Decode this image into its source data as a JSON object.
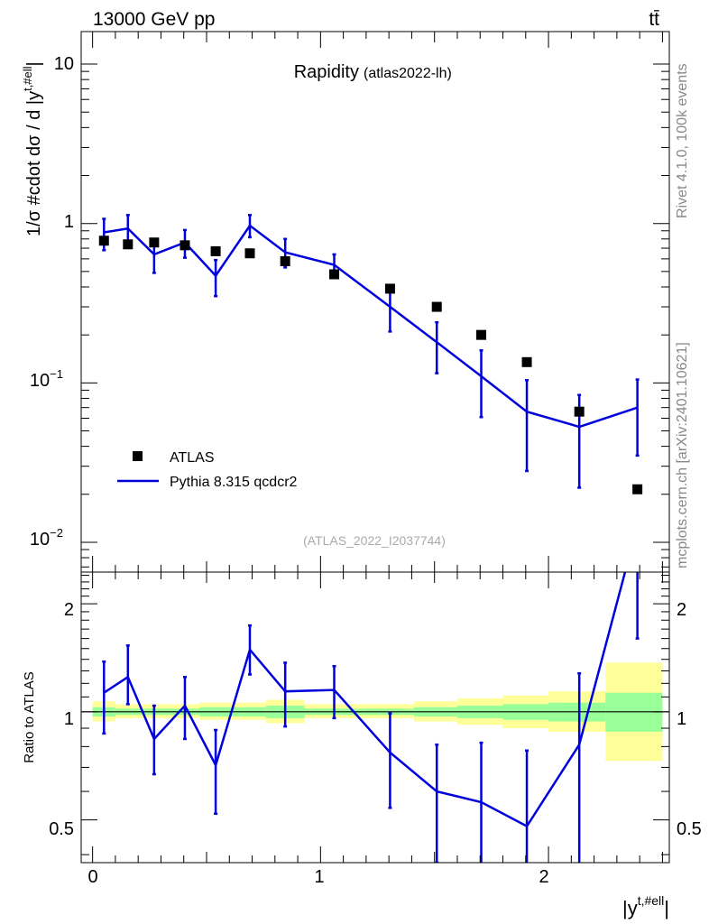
{
  "header": {
    "energy_label": "13000 GeV pp",
    "process_label": "tt̄"
  },
  "side_labels": {
    "rivet": "Rivet 4.1.0,  100k events",
    "mcplots": "mcplots.cern.ch [arXiv:2401.10621]"
  },
  "chart_data": [
    {
      "type": "scatter",
      "panel": "main",
      "title": "Rapidity",
      "subtitle": "(atlas2022-lh)",
      "watermark": "(ATLAS_2022_I2037744)",
      "xlabel": "|y^{t,#ell}|",
      "ylabel": "1/σ #cdot dσ / d |y^{t,#ell}|",
      "yscale": "log",
      "xlim": [
        -0.05,
        2.53
      ],
      "ylim": [
        0.0065,
        16
      ],
      "x_ticks": [
        "0",
        "1",
        "2"
      ],
      "y_ticks": [
        "10^{-2}",
        "10^{-1}",
        "1",
        "10"
      ],
      "legend": {
        "position": "bottom-left",
        "entries": [
          "ATLAS",
          "Pythia 8.315 qcdcr2"
        ]
      },
      "series": [
        {
          "name": "ATLAS",
          "style": "markers",
          "color": "#000000",
          "x": [
            0.05,
            0.155,
            0.27,
            0.405,
            0.54,
            0.69,
            0.845,
            1.06,
            1.305,
            1.51,
            1.705,
            1.905,
            2.135,
            2.39
          ],
          "values": [
            0.78,
            0.74,
            0.76,
            0.73,
            0.67,
            0.65,
            0.58,
            0.48,
            0.39,
            0.3,
            0.2,
            0.135,
            0.066,
            0.0215
          ]
        },
        {
          "name": "Pythia 8.315 qcdcr2",
          "style": "line",
          "color": "#0000dd",
          "x": [
            0.05,
            0.155,
            0.27,
            0.405,
            0.54,
            0.69,
            0.845,
            1.06,
            1.305,
            1.51,
            1.705,
            1.905,
            2.135,
            2.39
          ],
          "values": [
            0.88,
            0.93,
            0.64,
            0.76,
            0.47,
            0.97,
            0.66,
            0.55,
            0.3,
            0.18,
            0.11,
            0.066,
            0.053,
            0.07
          ],
          "err_low": [
            0.68,
            0.78,
            0.49,
            0.61,
            0.35,
            0.82,
            0.53,
            0.46,
            0.21,
            0.115,
            0.061,
            0.028,
            0.022,
            0.035
          ],
          "err_high": [
            1.07,
            1.13,
            0.79,
            0.91,
            0.59,
            1.13,
            0.8,
            0.64,
            0.39,
            0.24,
            0.16,
            0.104,
            0.084,
            0.105
          ]
        }
      ]
    },
    {
      "type": "line",
      "panel": "ratio",
      "ylabel": "Ratio to ATLAS",
      "xlabel": "|y^{t,#ell}|",
      "yscale": "log",
      "xlim": [
        -0.05,
        2.53
      ],
      "ylim": [
        0.38,
        2.45
      ],
      "y_ticks": [
        "0.5",
        "1",
        "2"
      ],
      "x_ticks": [
        "0",
        "1",
        "2"
      ],
      "reference_line": 1,
      "bands": {
        "bin_edges": [
          0.0,
          0.1,
          0.21,
          0.33,
          0.47,
          0.61,
          0.76,
          0.93,
          1.19,
          1.41,
          1.6,
          1.8,
          2.0,
          2.25,
          2.5
        ],
        "inner_low": [
          0.97,
          0.98,
          0.98,
          0.98,
          0.97,
          0.97,
          0.96,
          0.98,
          0.98,
          0.97,
          0.96,
          0.95,
          0.94,
          0.88
        ],
        "inner_high": [
          1.03,
          1.02,
          1.02,
          1.02,
          1.03,
          1.03,
          1.04,
          1.02,
          1.02,
          1.03,
          1.04,
          1.05,
          1.06,
          1.13
        ],
        "outer_low": [
          0.94,
          0.96,
          0.96,
          0.96,
          0.95,
          0.95,
          0.93,
          0.96,
          0.96,
          0.94,
          0.92,
          0.9,
          0.88,
          0.73
        ],
        "outer_high": [
          1.07,
          1.05,
          1.05,
          1.05,
          1.06,
          1.06,
          1.08,
          1.05,
          1.05,
          1.07,
          1.09,
          1.11,
          1.14,
          1.37
        ]
      },
      "series": [
        {
          "name": "Pythia 8.315 qcdcr2 / ATLAS",
          "color": "#0000dd",
          "x": [
            0.05,
            0.155,
            0.27,
            0.405,
            0.54,
            0.69,
            0.845,
            1.06,
            1.305,
            1.51,
            1.705,
            1.905,
            2.135,
            2.39
          ],
          "values": [
            1.13,
            1.25,
            0.84,
            1.04,
            0.71,
            1.49,
            1.14,
            1.15,
            0.77,
            0.6,
            0.56,
            0.48,
            0.81,
            3.3
          ],
          "err_low": [
            0.87,
            1.05,
            0.67,
            0.84,
            0.52,
            1.27,
            0.91,
            0.96,
            0.54,
            0.38,
            0.31,
            0.21,
            0.33,
            1.6
          ],
          "err_high": [
            1.38,
            1.53,
            1.04,
            1.25,
            0.89,
            1.74,
            1.37,
            1.34,
            0.99,
            0.81,
            0.82,
            0.78,
            1.28,
            5.0
          ]
        }
      ]
    }
  ]
}
